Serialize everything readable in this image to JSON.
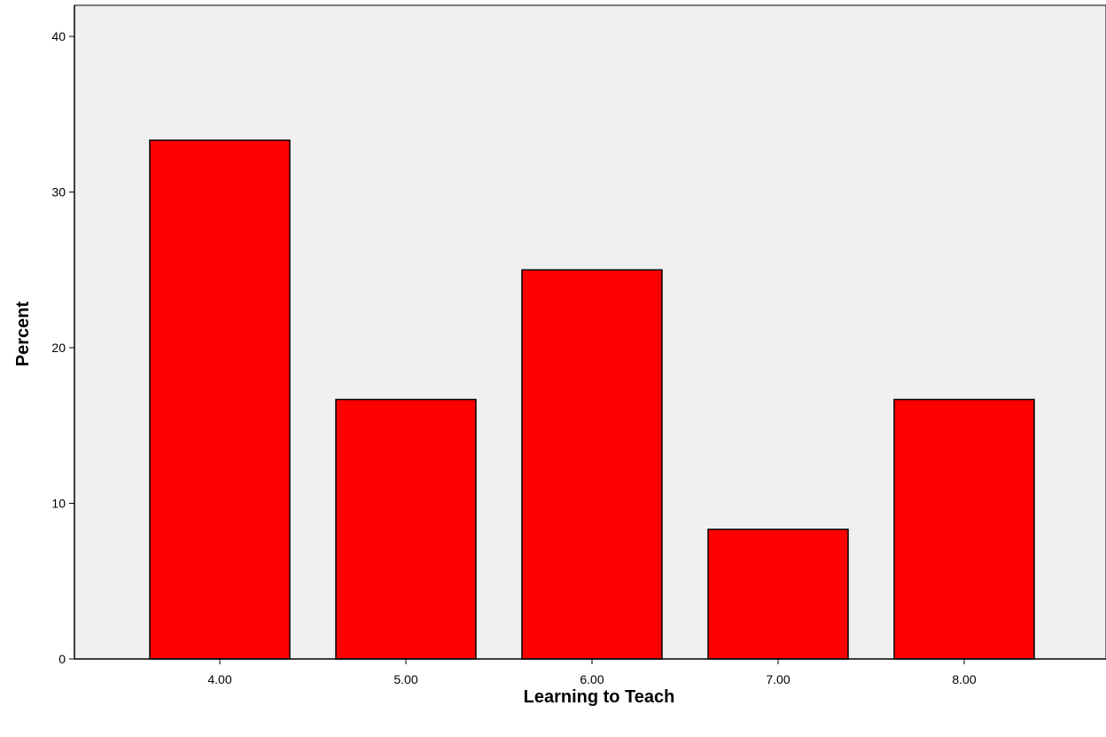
{
  "chart_data": {
    "type": "bar",
    "title": "",
    "xlabel": "Learning to Teach",
    "ylabel": "Percent",
    "categories": [
      "4.00",
      "5.00",
      "6.00",
      "7.00",
      "8.00"
    ],
    "values": [
      33.33,
      16.67,
      25.0,
      8.33,
      16.67
    ],
    "ylim": [
      0,
      42
    ],
    "yticks": [
      "0",
      "10",
      "20",
      "30",
      "40"
    ],
    "grid": false,
    "legend": "none",
    "colors": {
      "bar_fill": "#fe0000",
      "bar_stroke": "#000000",
      "plot_background": "#f0f0f0"
    }
  }
}
